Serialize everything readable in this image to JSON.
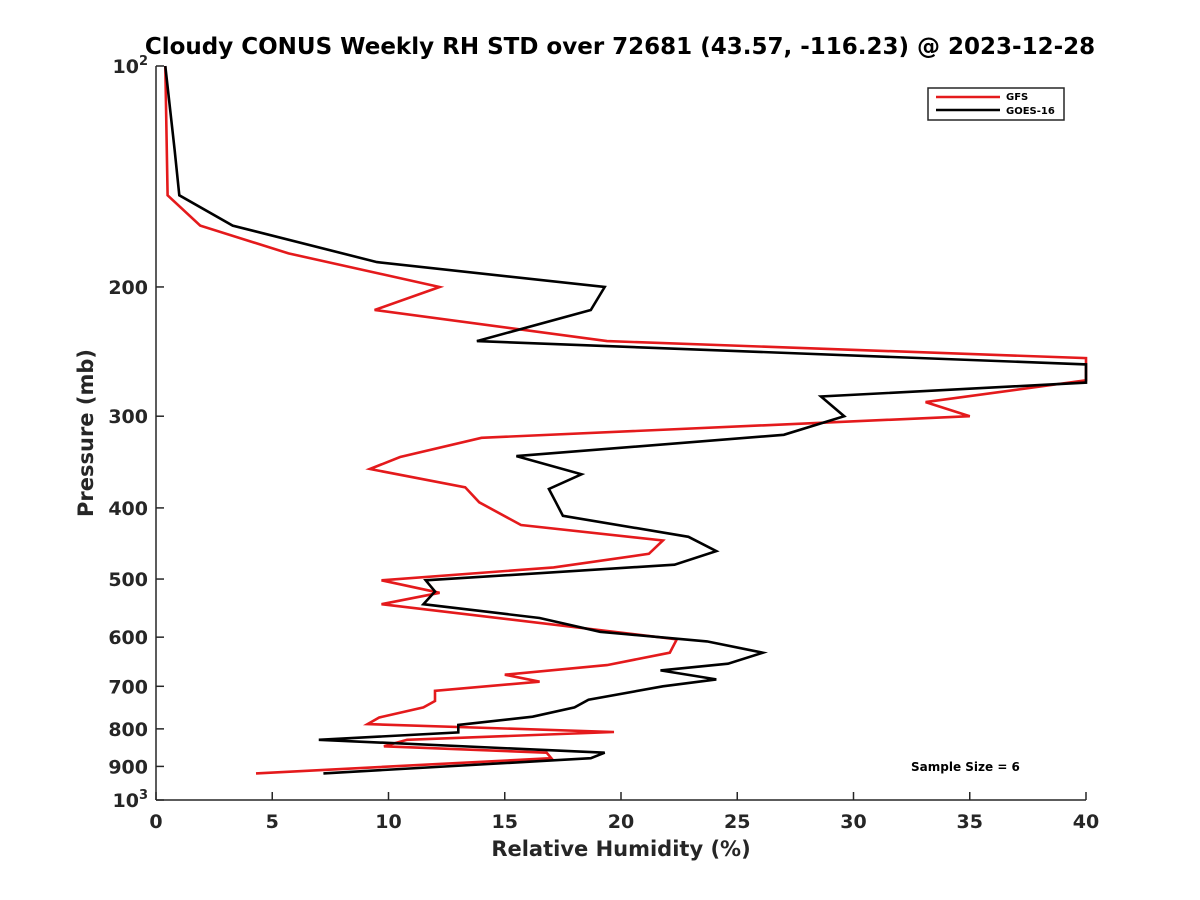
{
  "chart_data": {
    "type": "line",
    "title": "Cloudy CONUS Weekly RH STD over 72681 (43.57, -116.23) @ 2023-12-28",
    "xlabel": "Relative Humidity (%)",
    "ylabel": "Pressure (mb)",
    "xlim": [
      0,
      40
    ],
    "ylim": [
      100,
      1000
    ],
    "y_scale": "log",
    "y_reversed": true,
    "grid": false,
    "legend_position": "top-right",
    "x_ticks": [
      "0",
      "5",
      "10",
      "15",
      "20",
      "25",
      "30",
      "35",
      "40"
    ],
    "y_ticks": [
      {
        "value": 100,
        "base": "10",
        "exp": "2"
      },
      {
        "value": 200,
        "label": "200"
      },
      {
        "value": 300,
        "label": "300"
      },
      {
        "value": 400,
        "label": "400"
      },
      {
        "value": 500,
        "label": "500"
      },
      {
        "value": 600,
        "label": "600"
      },
      {
        "value": 700,
        "label": "700"
      },
      {
        "value": 800,
        "label": "800"
      },
      {
        "value": 900,
        "label": "900"
      },
      {
        "value": 1000,
        "base": "10",
        "exp": "3"
      }
    ],
    "series": [
      {
        "name": "GFS",
        "color": "#e41a1c",
        "points": [
          [
            0.4,
            100
          ],
          [
            0.5,
            150
          ],
          [
            1.9,
            165
          ],
          [
            5.7,
            180
          ],
          [
            12.2,
            200
          ],
          [
            9.4,
            215
          ],
          [
            19.4,
            237
          ],
          [
            40,
            250
          ],
          [
            40,
            268
          ],
          [
            33.1,
            287
          ],
          [
            35.0,
            300
          ],
          [
            14.0,
            321
          ],
          [
            10.5,
            341
          ],
          [
            9.2,
            354
          ],
          [
            13.3,
            375
          ],
          [
            13.9,
            393
          ],
          [
            15.7,
            422
          ],
          [
            21.8,
            443
          ],
          [
            21.2,
            462
          ],
          [
            17.1,
            482
          ],
          [
            9.7,
            502
          ],
          [
            12.2,
            522
          ],
          [
            9.7,
            541
          ],
          [
            22.4,
            604
          ],
          [
            22.1,
            630
          ],
          [
            19.4,
            655
          ],
          [
            15.0,
            675
          ],
          [
            16.5,
            690
          ],
          [
            12.0,
            710
          ],
          [
            12.0,
            733
          ],
          [
            11.5,
            748
          ],
          [
            9.6,
            772
          ],
          [
            9.1,
            788
          ],
          [
            19.7,
            808
          ],
          [
            10.8,
            828
          ],
          [
            9.8,
            845
          ],
          [
            16.8,
            862
          ],
          [
            17.0,
            877
          ],
          [
            4.3,
            920
          ]
        ]
      },
      {
        "name": "GOES-16",
        "color": "#000000",
        "points": [
          [
            0.4,
            100
          ],
          [
            0.8,
            130
          ],
          [
            1.0,
            150
          ],
          [
            3.3,
            165
          ],
          [
            9.5,
            185
          ],
          [
            19.3,
            200
          ],
          [
            18.7,
            215
          ],
          [
            13.8,
            237
          ],
          [
            40,
            255
          ],
          [
            40,
            270
          ],
          [
            28.6,
            282
          ],
          [
            29.6,
            300
          ],
          [
            27.0,
            318
          ],
          [
            15.5,
            340
          ],
          [
            18.3,
            360
          ],
          [
            16.9,
            377
          ],
          [
            17.2,
            393
          ],
          [
            17.5,
            410
          ],
          [
            22.9,
            438
          ],
          [
            24.1,
            458
          ],
          [
            22.3,
            478
          ],
          [
            11.6,
            502
          ],
          [
            12.0,
            520
          ],
          [
            11.5,
            541
          ],
          [
            16.5,
            565
          ],
          [
            19.1,
            590
          ],
          [
            23.7,
            608
          ],
          [
            26.1,
            630
          ],
          [
            24.6,
            652
          ],
          [
            21.7,
            666
          ],
          [
            24.1,
            685
          ],
          [
            21.8,
            700
          ],
          [
            18.6,
            730
          ],
          [
            18.0,
            748
          ],
          [
            16.2,
            770
          ],
          [
            13.0,
            790
          ],
          [
            13.0,
            809
          ],
          [
            7.0,
            828
          ],
          [
            19.3,
            862
          ],
          [
            18.7,
            877
          ],
          [
            7.2,
            920
          ]
        ]
      }
    ],
    "annotation": "Sample Size = 6"
  }
}
